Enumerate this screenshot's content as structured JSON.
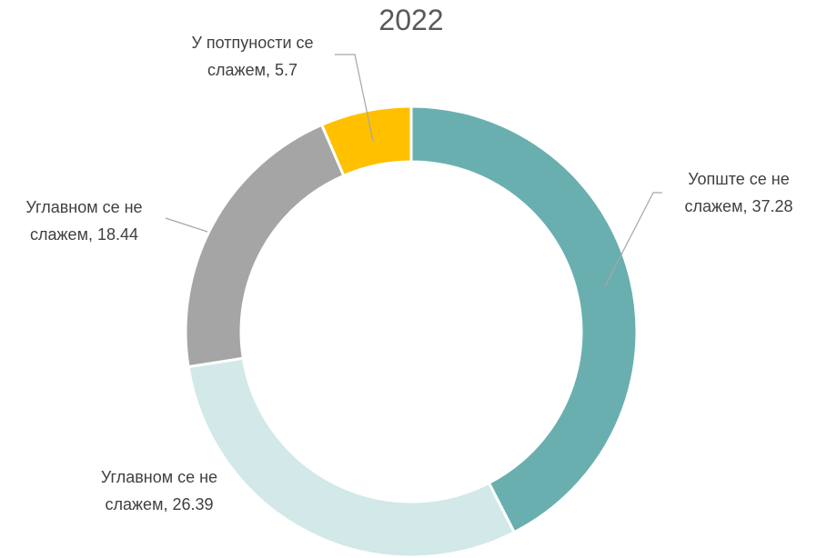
{
  "chart_data": {
    "type": "donut",
    "title": "2022",
    "categories": [
      "Уопште се не слажем",
      "Углавном се не слажем",
      "Углавном се не слажем",
      "У потпуности се слажем"
    ],
    "values": [
      37.28,
      26.39,
      18.44,
      5.7
    ],
    "value_labels": [
      "Уопште се не слажем, 37.28",
      "Углавном се не слажем, 26.39",
      "Углавном се не слажем, 18.44",
      "У потпуности се слажем, 5.7"
    ],
    "colors": [
      "#6aafb0",
      "#d3e8e8",
      "#a5a5a5",
      "#ffc000"
    ]
  }
}
